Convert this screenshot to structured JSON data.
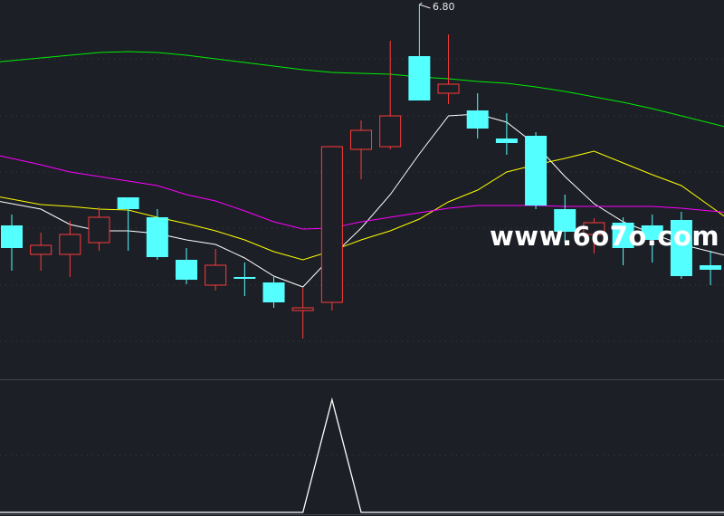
{
  "chart_data": [
    {
      "type": "candlestick",
      "annotations": {
        "high_label": "6.80"
      },
      "watermark": "www.6o7o.com",
      "colors": {
        "up": "#ff3b3b",
        "down": "#54ffff",
        "background": "#1c1f26",
        "ma1": "#ffffff",
        "ma2": "#ffff00",
        "ma3": "#ff00ff",
        "ma4": "#00ee00"
      },
      "grid": true,
      "ohlc": [
        [
          5.58,
          5.64,
          5.33,
          5.455
        ],
        [
          5.42,
          5.54,
          5.33,
          5.47
        ],
        [
          5.42,
          5.605,
          5.295,
          5.53
        ],
        [
          5.485,
          5.68,
          5.44,
          5.625
        ],
        [
          5.735,
          5.735,
          5.44,
          5.67
        ],
        [
          5.625,
          5.67,
          5.39,
          5.405
        ],
        [
          5.39,
          5.455,
          5.255,
          5.28
        ],
        [
          5.25,
          5.45,
          5.22,
          5.36
        ],
        [
          5.295,
          5.375,
          5.19,
          5.285
        ],
        [
          5.265,
          5.295,
          5.125,
          5.155
        ],
        [
          5.11,
          5.235,
          4.955,
          5.125
        ],
        [
          5.155,
          6.015,
          5.11,
          6.015
        ],
        [
          6.0,
          6.16,
          5.835,
          6.105
        ],
        [
          6.015,
          6.6,
          6.0,
          6.185
        ],
        [
          6.515,
          6.8,
          6.27,
          6.27
        ],
        [
          6.31,
          6.635,
          6.25,
          6.36
        ],
        [
          6.215,
          6.31,
          6.06,
          6.115
        ],
        [
          6.06,
          6.2,
          5.97,
          6.035
        ],
        [
          6.075,
          6.095,
          5.67,
          5.69
        ],
        [
          5.67,
          5.75,
          5.485,
          5.545
        ],
        [
          5.53,
          5.62,
          5.425,
          5.595
        ],
        [
          5.595,
          5.625,
          5.36,
          5.455
        ],
        [
          5.58,
          5.64,
          5.375,
          5.5
        ],
        [
          5.61,
          5.655,
          5.285,
          5.3
        ],
        [
          5.36,
          5.44,
          5.25,
          5.335
        ]
      ],
      "moving_averages": [
        {
          "color": "#ffffff",
          "values": [
            5.7,
            5.67,
            5.585,
            5.55,
            5.55,
            5.535,
            5.5,
            5.475,
            5.4,
            5.3,
            5.24,
            5.41,
            5.565,
            5.75,
            5.975,
            6.185,
            6.195,
            6.15,
            6.025,
            5.85,
            5.7,
            5.6,
            5.535,
            5.475,
            5.435
          ]
        },
        {
          "color": "#ffff00",
          "values": [
            5.725,
            5.695,
            5.685,
            5.67,
            5.665,
            5.625,
            5.59,
            5.55,
            5.5,
            5.435,
            5.39,
            5.44,
            5.5,
            5.55,
            5.615,
            5.71,
            5.775,
            5.875,
            5.915,
            5.95,
            5.99,
            5.925,
            5.86,
            5.8,
            5.685
          ]
        },
        {
          "color": "#ff00ff",
          "values": [
            5.95,
            5.915,
            5.875,
            5.85,
            5.825,
            5.8,
            5.75,
            5.715,
            5.66,
            5.6,
            5.56,
            5.565,
            5.6,
            5.625,
            5.65,
            5.675,
            5.69,
            5.69,
            5.69,
            5.685,
            5.685,
            5.685,
            5.685,
            5.675,
            5.66
          ]
        },
        {
          "color": "#00ee00",
          "values": [
            6.49,
            6.505,
            6.52,
            6.535,
            6.54,
            6.535,
            6.52,
            6.5,
            6.48,
            6.46,
            6.44,
            6.425,
            6.42,
            6.415,
            6.4,
            6.39,
            6.375,
            6.365,
            6.345,
            6.32,
            6.29,
            6.26,
            6.225,
            6.185,
            6.145
          ]
        }
      ]
    },
    {
      "type": "line",
      "color": "#ffffff",
      "values": [
        0,
        0,
        0,
        0,
        0,
        0,
        0,
        0,
        0,
        0,
        0,
        1,
        0,
        0,
        0,
        0,
        0,
        0,
        0,
        0,
        0,
        0,
        0,
        0,
        0
      ],
      "ylim": [
        0,
        1.18
      ]
    }
  ]
}
